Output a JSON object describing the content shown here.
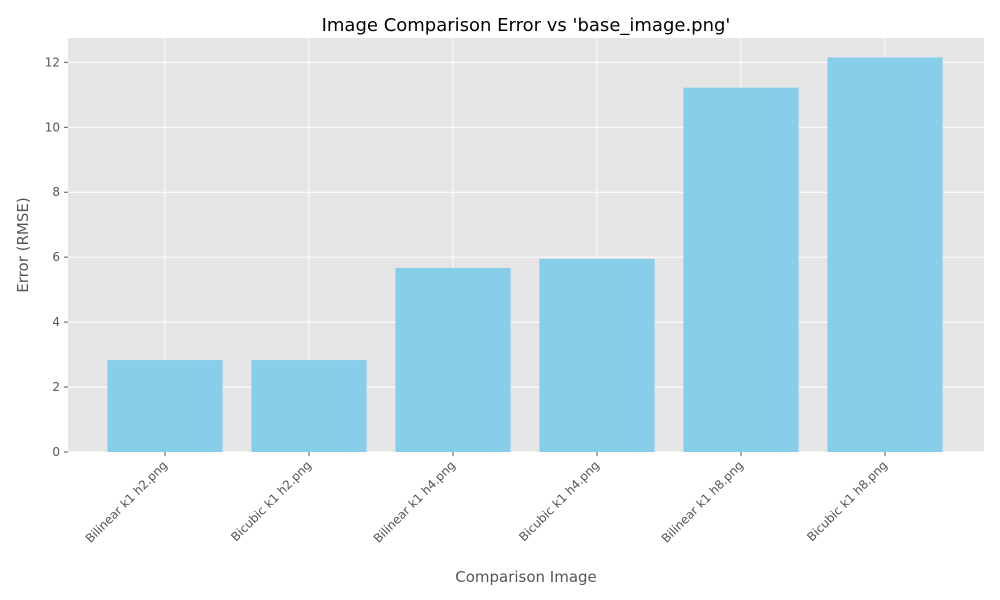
{
  "chart_data": {
    "type": "bar",
    "title": "Image Comparison Error vs 'base_image.png'",
    "xlabel": "Comparison Image",
    "ylabel": "Error (RMSE)",
    "categories": [
      "Bilinear k1 h2.png",
      "Bicubic k1 h2.png",
      "Bilinear k1 h4.png",
      "Bicubic k1 h4.png",
      "Bilinear k1 h8.png",
      "Bicubic k1 h8.png"
    ],
    "values": [
      2.83,
      2.83,
      5.67,
      5.95,
      11.22,
      12.15
    ],
    "ylim": [
      0,
      12.75
    ],
    "yticks": [
      0,
      2,
      4,
      6,
      8,
      10,
      12
    ],
    "grid": true,
    "bar_color": "#87CEEB",
    "background_color": "#E5E5E5",
    "grid_color": "#FFFFFF"
  }
}
